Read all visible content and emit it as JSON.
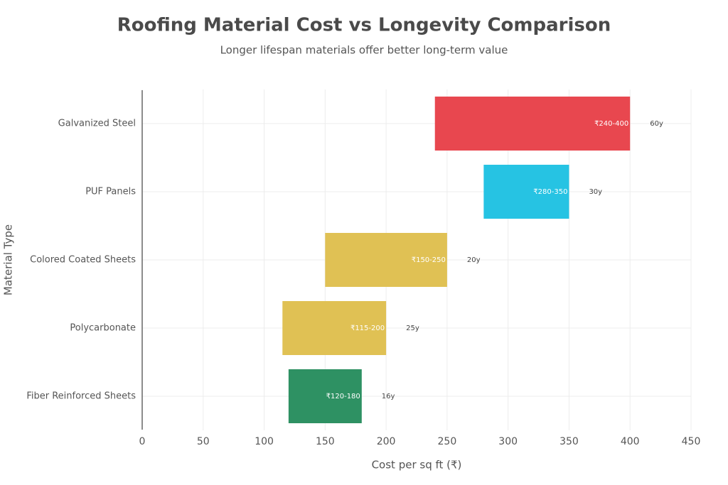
{
  "chart_data": {
    "type": "floating-bar",
    "title": "Roofing Material Cost vs Longevity Comparison",
    "subtitle": "Longer lifespan materials offer better long-term value",
    "x_label": "Cost per sq ft (₹)",
    "y_label": "Material Type",
    "categories": [
      "Galvanized Steel",
      "PUF Panels",
      "Colored Coated Sheets",
      "Polycarbonate",
      "Fiber Reinforced Sheets"
    ],
    "low": [
      240,
      280,
      150,
      115,
      120
    ],
    "high": [
      400,
      350,
      250,
      200,
      180
    ],
    "value_labels": [
      "₹240-400",
      "₹280-350",
      "₹150-250",
      "₹115-200",
      "₹120-180"
    ],
    "lifespan": [
      60,
      30,
      20,
      25,
      16
    ],
    "lifespan_labels": [
      "60y",
      "30y",
      "20y",
      "25y",
      "16y"
    ],
    "colors": [
      "#e8474f",
      "#26c3e3",
      "#e0c154",
      "#e0c154",
      "#2e9163"
    ],
    "xlim": [
      0,
      450
    ],
    "xticks": [
      0,
      50,
      100,
      150,
      200,
      250,
      300,
      350,
      400,
      450
    ],
    "grid": true
  }
}
